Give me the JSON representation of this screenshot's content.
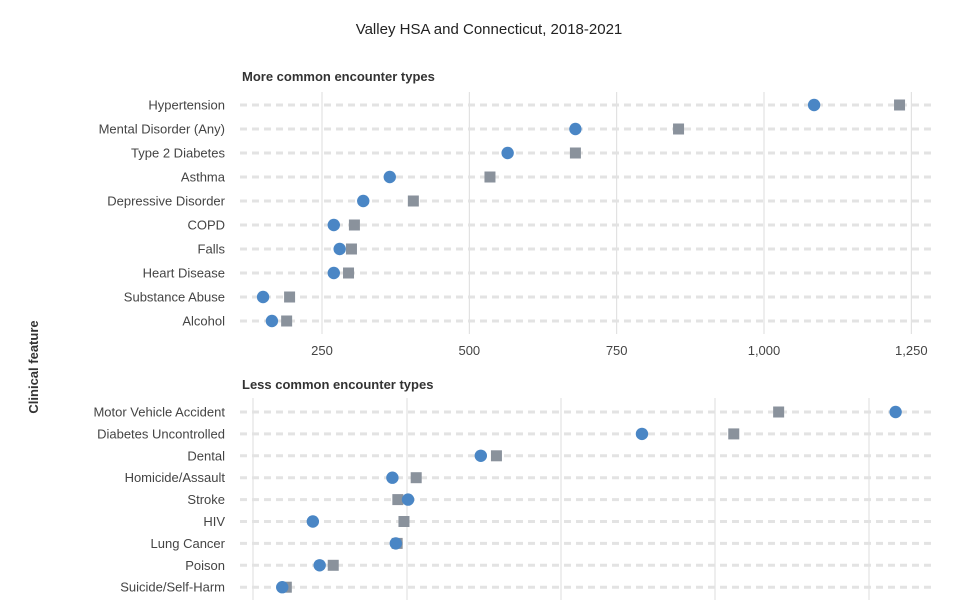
{
  "chart_data": {
    "title": "Valley HSA and Connecticut, 2018-2021",
    "ylabel": "Clinical feature",
    "type": "scatter",
    "grid": "vertical gridlines with dashed row guides",
    "legend": "none",
    "colors": {
      "circle": "#4a86c5",
      "square": "#8a929c"
    },
    "panels": [
      {
        "title": "More common encounter types",
        "xlim": [
          100,
          1300
        ],
        "xticks": [
          250,
          500,
          750,
          1000,
          1250
        ],
        "xtick_labels": [
          "250",
          "500",
          "750",
          "1,000",
          "1,250"
        ],
        "categories": [
          "Hypertension",
          "Mental Disorder (Any)",
          "Type 2 Diabetes",
          "Asthma",
          "Depressive Disorder",
          "COPD",
          "Falls",
          "Heart Disease",
          "Substance Abuse",
          "Alcohol"
        ],
        "series": [
          {
            "marker": "circle",
            "values": [
              1085,
              680,
              565,
              365,
              320,
              270,
              280,
              270,
              150,
              165
            ]
          },
          {
            "marker": "square",
            "values": [
              1230,
              855,
              680,
              535,
              405,
              305,
              300,
              295,
              195,
              190
            ]
          }
        ]
      },
      {
        "title": "Less common encounter types",
        "xlim": [
          0,
          1000
        ],
        "xticks": [],
        "xtick_labels": [],
        "categories": [
          "Motor Vehicle Accident",
          "Diabetes Uncontrolled",
          "Dental",
          "Homicide/Assault",
          "Stroke",
          "HIV",
          "Lung Cancer",
          "Poison",
          "Suicide/Self-Harm"
        ],
        "series": [
          {
            "marker": "circle",
            "values": [
              945,
              572,
              335,
              205,
              228,
              88,
              210,
              98,
              43
            ]
          },
          {
            "marker": "square",
            "values": [
              773,
              707,
              358,
              240,
              213,
              222,
              212,
              118,
              49
            ]
          }
        ]
      }
    ]
  }
}
